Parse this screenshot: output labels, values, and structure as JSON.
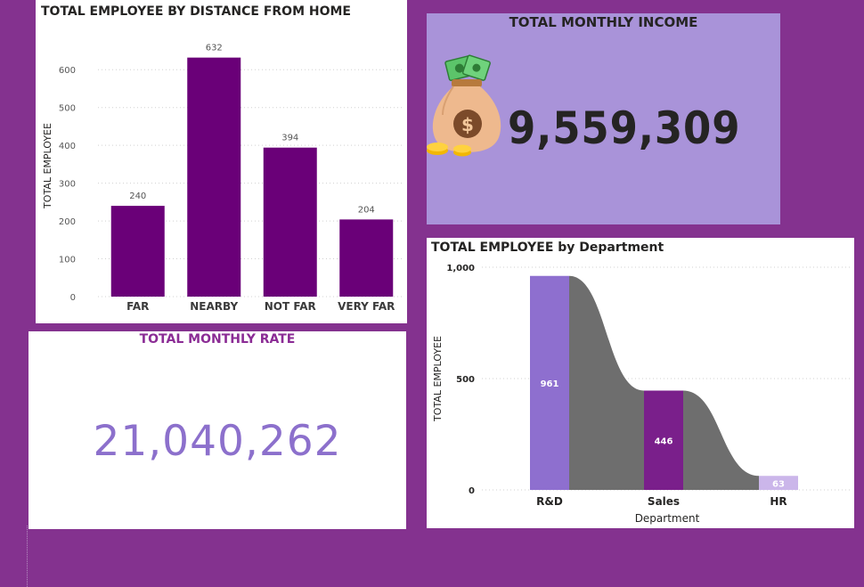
{
  "colors": {
    "page_bg": "#84328f",
    "bar_purple": "#6a0078",
    "income_card_bg": "#a993d9",
    "rate_value": "#8c70cc",
    "rate_title": "#8b2c95",
    "rd_bar": "#8e6fcf",
    "sales_bar": "#7a1f8b",
    "hr_bar": "#cbb6ea",
    "ribbon_gray": "#6e6e6e"
  },
  "distance_card": {
    "title": "TOTAL EMPLOYEE BY DISTANCE FROM HOME"
  },
  "income_card": {
    "title": "TOTAL MONTHLY INCOME",
    "value": "9,559,309",
    "icon": "money-bag-icon"
  },
  "rate_card": {
    "title": "TOTAL MONTHLY RATE",
    "value": "21,040,262"
  },
  "department_card": {
    "title": "TOTAL EMPLOYEE by Department"
  },
  "chart_data": [
    {
      "type": "bar",
      "title": "TOTAL EMPLOYEE BY DISTANCE FROM HOME",
      "xlabel": "",
      "ylabel": "TOTAL EMPLOYEE",
      "categories": [
        "FAR",
        "NEARBY",
        "NOT FAR",
        "VERY FAR"
      ],
      "values": [
        240,
        632,
        394,
        204
      ],
      "data_labels": [
        "240",
        "632",
        "394",
        "204"
      ],
      "yticks": [
        0,
        100,
        200,
        300,
        400,
        500,
        600
      ],
      "ytick_labels": [
        "0",
        "100",
        "200",
        "300",
        "400",
        "500",
        "600"
      ],
      "ylim": [
        0,
        650
      ],
      "grid": true,
      "legend": "none"
    },
    {
      "type": "bar",
      "title": "TOTAL EMPLOYEE by Department",
      "xlabel": "Department",
      "ylabel": "TOTAL EMPLOYEE",
      "categories": [
        "R&D",
        "Sales",
        "HR"
      ],
      "values": [
        961,
        446,
        63
      ],
      "data_labels": [
        "961",
        "446",
        "63"
      ],
      "yticks": [
        0,
        500,
        1000
      ],
      "ytick_labels": [
        "0",
        "500",
        "1,000"
      ],
      "ylim": [
        0,
        1000
      ],
      "grid": true,
      "legend": "none",
      "style": "ribbon"
    }
  ]
}
